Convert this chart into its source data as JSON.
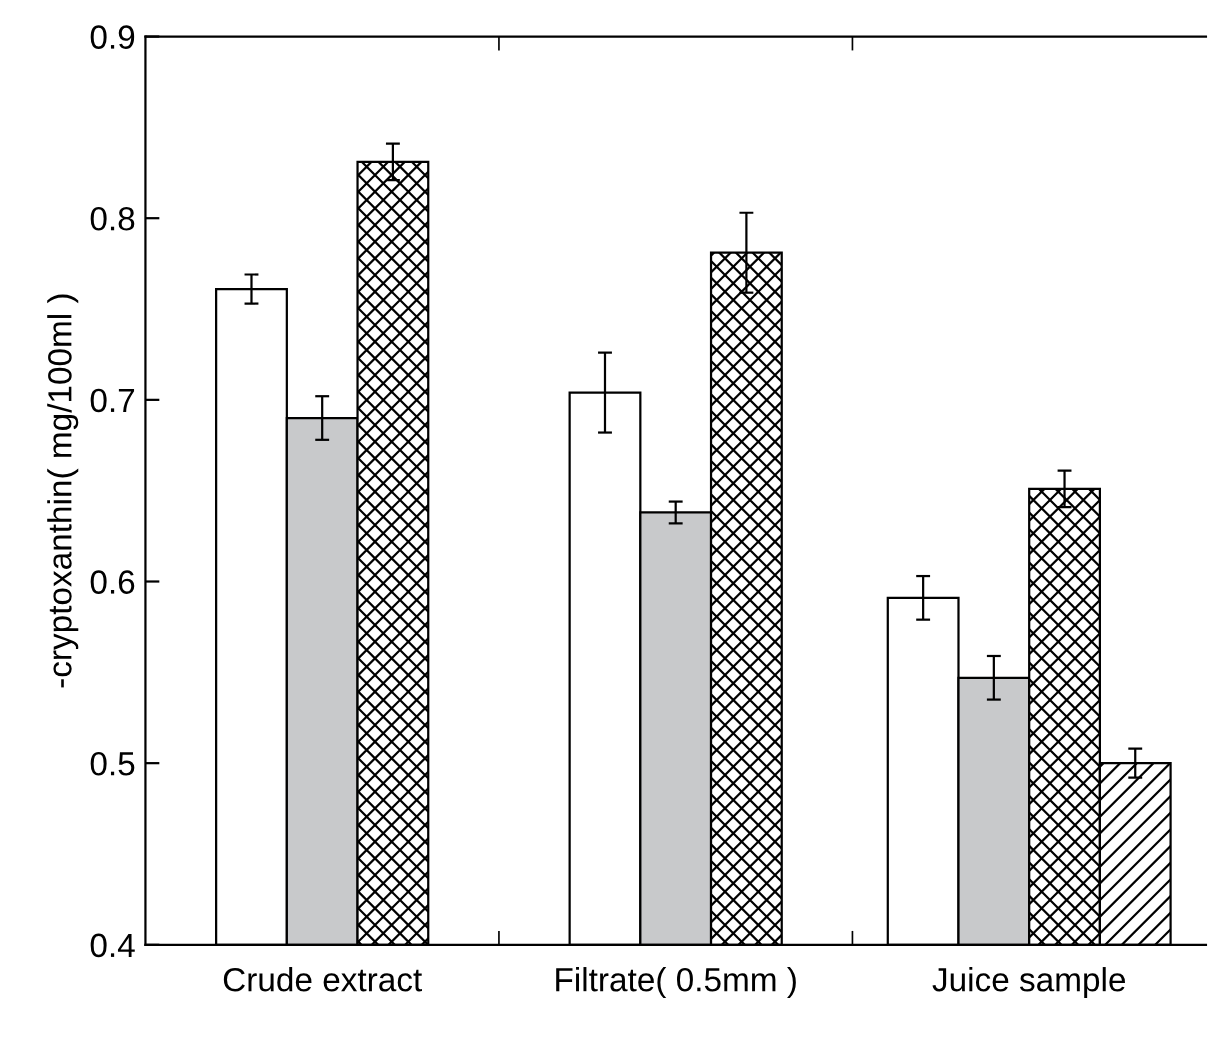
{
  "chart_data": {
    "type": "bar",
    "ylabel": "-cryptoxanthin( mg/100ml )",
    "categories": [
      "Crude extract",
      "Filtrate( 0.5mm )",
      "Juice sample"
    ],
    "series": [
      {
        "color": "#ffffff",
        "values": [
          0.761,
          0.704,
          0.591
        ],
        "errors": [
          0.008,
          0.022,
          0.012
        ]
      },
      {
        "color": "#c8c9cb",
        "values": [
          0.69,
          0.638,
          0.547
        ],
        "errors": [
          0.012,
          0.006,
          0.012
        ]
      },
      {
        "color": "#000000",
        "values": [
          0.831,
          0.781,
          0.651
        ],
        "errors": [
          0.01,
          0.022,
          0.01
        ]
      },
      {
        "color": "#000000",
        "values": [
          null,
          null,
          0.5
        ],
        "errors": [
          null,
          null,
          0.008
        ]
      }
    ],
    "ylim": [
      0.4,
      0.9
    ],
    "yticks": [
      0.4,
      0.5,
      0.6,
      0.7,
      0.8,
      0.9
    ],
    "grid": false
  }
}
